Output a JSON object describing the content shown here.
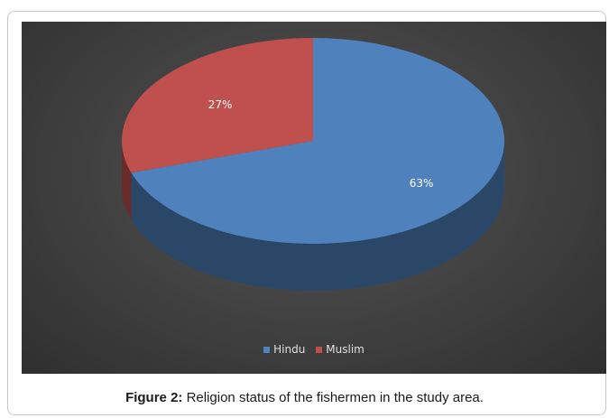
{
  "chart_data": {
    "type": "pie",
    "categories": [
      "Hindu",
      "Muslim"
    ],
    "values": [
      63,
      27
    ],
    "data_labels": [
      "63%",
      "27%"
    ],
    "colors": [
      "#4f81bd",
      "#c0504d"
    ],
    "legend": "bottom",
    "style": "3d"
  },
  "legend_items": [
    {
      "label": "Hindu",
      "color": "#4f81bd"
    },
    {
      "label": "Muslim",
      "color": "#c0504d"
    }
  ],
  "caption": {
    "prefix": "Figure 2:",
    "text": " Religion status of the fishermen in the study area."
  }
}
